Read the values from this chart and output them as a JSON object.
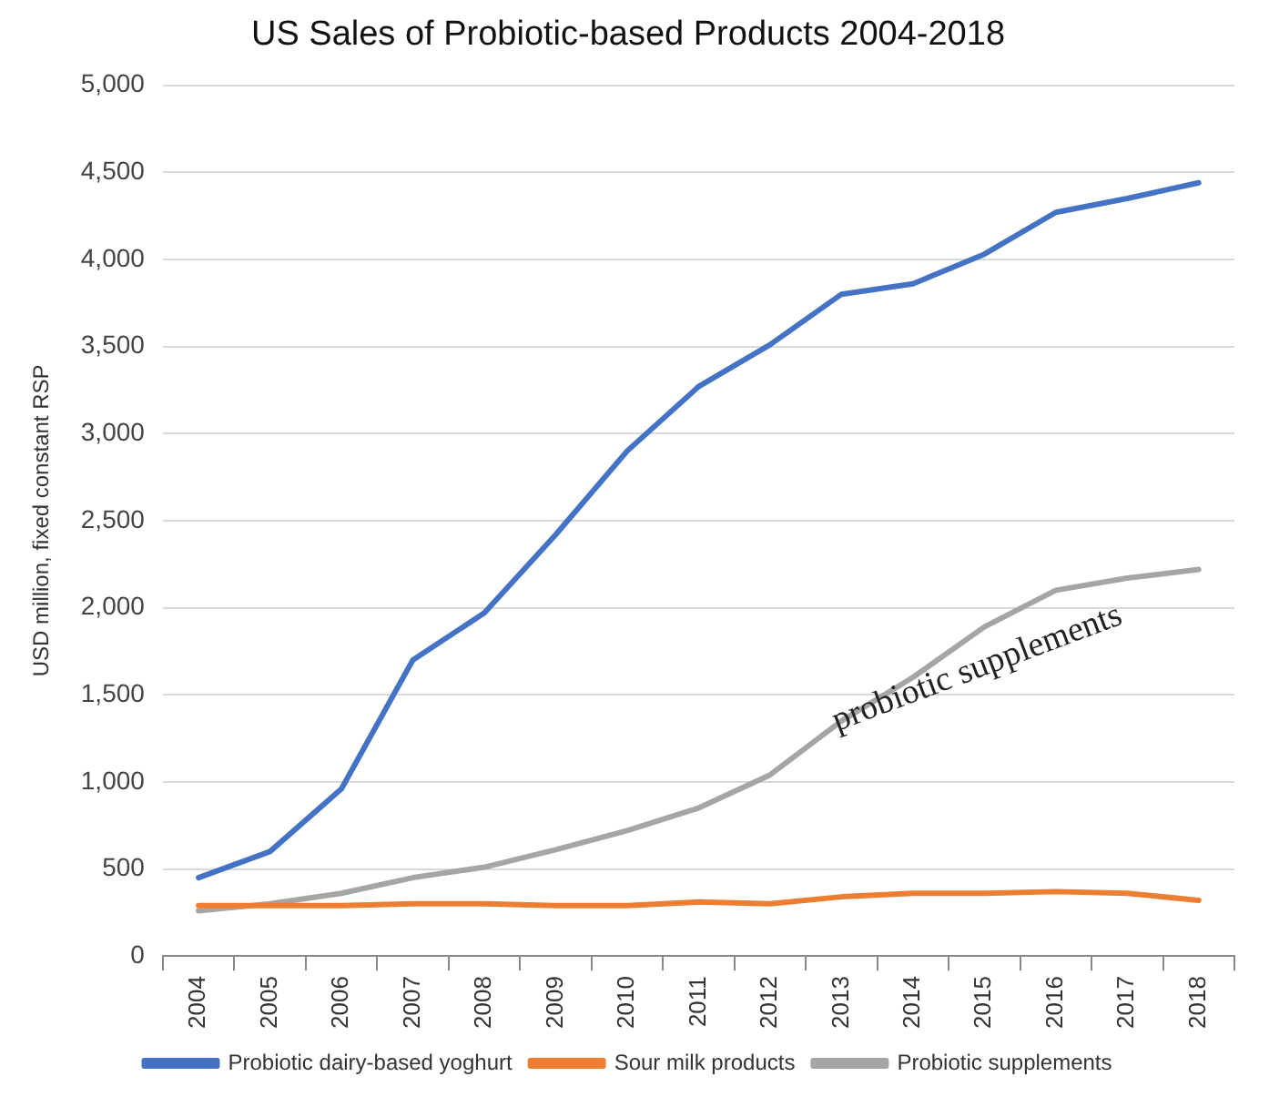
{
  "chart_data": {
    "type": "line",
    "title": "US Sales of Probiotic-based Products 2004-2018",
    "ylabel": "USD million, fixed constant RSP",
    "categories": [
      "2004",
      "2005",
      "2006",
      "2007",
      "2008",
      "2009",
      "2010",
      "2011",
      "2012",
      "2013",
      "2014",
      "2015",
      "2016",
      "2017",
      "2018"
    ],
    "series": [
      {
        "name": "Probiotic dairy-based yoghurt",
        "color": "#4472c4",
        "values": [
          450,
          600,
          960,
          1700,
          1970,
          2420,
          2900,
          3270,
          3510,
          3800,
          3860,
          4030,
          4270,
          4350,
          4440
        ]
      },
      {
        "name": "Sour milk products",
        "color": "#ed7d31",
        "values": [
          290,
          290,
          290,
          300,
          300,
          290,
          290,
          310,
          300,
          340,
          360,
          360,
          370,
          360,
          320
        ]
      },
      {
        "name": "Probiotic supplements",
        "color": "#a5a5a5",
        "values": [
          260,
          300,
          360,
          450,
          510,
          610,
          720,
          850,
          1040,
          1350,
          1600,
          1890,
          2100,
          2170,
          2220
        ]
      }
    ],
    "ylim": [
      0,
      5000
    ],
    "yticks": [
      0,
      {
        "value": 500,
        "label": "500"
      },
      {
        "value": 1000,
        "label": "1,000"
      },
      {
        "value": 1500,
        "label": "1,500"
      },
      {
        "value": 2000,
        "label": "2,000"
      },
      {
        "value": 2500,
        "label": "2,500"
      },
      {
        "value": 3000,
        "label": "3,000"
      },
      {
        "value": 3500,
        "label": "3,500"
      },
      {
        "value": 4000,
        "label": "4,000"
      },
      {
        "value": 4500,
        "label": "4,500"
      },
      {
        "value": 5000,
        "label": "5,000"
      }
    ],
    "annotations": [
      "probiotic supplements"
    ],
    "grid": "y",
    "legend": "bottom",
    "marker": "none",
    "line_style": "solid"
  }
}
